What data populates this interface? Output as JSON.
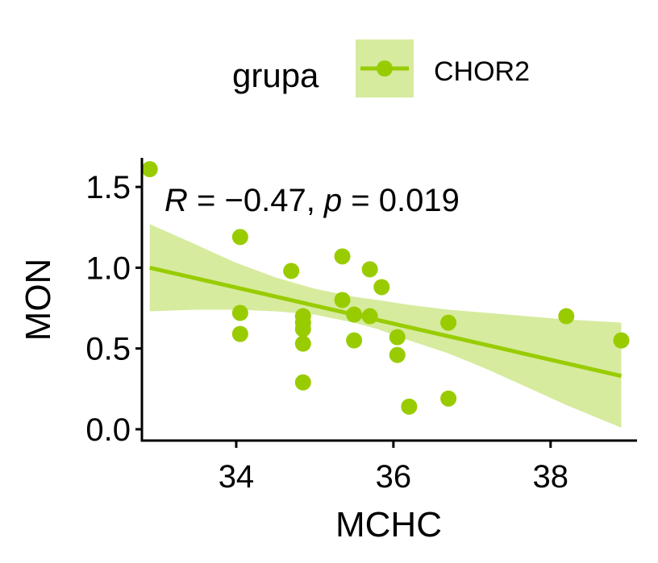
{
  "chart_data": {
    "type": "scatter",
    "xlabel": "MCHC",
    "ylabel": "MON",
    "xlim": [
      32.8,
      39.1
    ],
    "ylim": [
      -0.07,
      1.68
    ],
    "x_ticks": [
      34,
      36,
      38
    ],
    "y_ticks": [
      0.0,
      0.5,
      1.0,
      1.5
    ],
    "x_tick_labels": [
      "34",
      "36",
      "38"
    ],
    "y_tick_labels": [
      "0.0",
      "0.5",
      "1.0",
      "1.5"
    ],
    "grid": false,
    "legend": {
      "title": "grupa",
      "position": "top",
      "entries": [
        "CHOR2"
      ]
    },
    "annotation": {
      "r_symbol": "R",
      "r_text": " = −0.47, ",
      "p_symbol": "p",
      "p_text": " = 0.019"
    },
    "colors": {
      "points": "#99CC00",
      "line": "#99CC00",
      "band": "#D6EB9E"
    },
    "series": [
      {
        "name": "CHOR2",
        "points": [
          {
            "x": 32.9,
            "y": 1.61
          },
          {
            "x": 34.05,
            "y": 1.19
          },
          {
            "x": 34.05,
            "y": 0.72
          },
          {
            "x": 34.05,
            "y": 0.59
          },
          {
            "x": 34.7,
            "y": 0.98
          },
          {
            "x": 34.85,
            "y": 0.7
          },
          {
            "x": 34.85,
            "y": 0.66
          },
          {
            "x": 34.85,
            "y": 0.62
          },
          {
            "x": 34.85,
            "y": 0.53
          },
          {
            "x": 34.85,
            "y": 0.29
          },
          {
            "x": 35.35,
            "y": 1.07
          },
          {
            "x": 35.35,
            "y": 0.8
          },
          {
            "x": 35.5,
            "y": 0.71
          },
          {
            "x": 35.5,
            "y": 0.55
          },
          {
            "x": 35.7,
            "y": 0.99
          },
          {
            "x": 35.7,
            "y": 0.7
          },
          {
            "x": 35.85,
            "y": 0.88
          },
          {
            "x": 36.05,
            "y": 0.57
          },
          {
            "x": 36.05,
            "y": 0.46
          },
          {
            "x": 36.2,
            "y": 0.14
          },
          {
            "x": 36.7,
            "y": 0.66
          },
          {
            "x": 36.7,
            "y": 0.19
          },
          {
            "x": 38.2,
            "y": 0.7
          },
          {
            "x": 38.9,
            "y": 0.55
          }
        ],
        "fit": {
          "x": [
            32.9,
            38.9
          ],
          "y": [
            1.0,
            0.33
          ]
        },
        "ci_band": {
          "x": [
            32.9,
            33.5,
            34.0,
            34.5,
            35.0,
            35.5,
            35.8,
            36.2,
            36.7,
            37.2,
            37.7,
            38.2,
            38.9
          ],
          "upper": [
            1.27,
            1.14,
            1.03,
            0.94,
            0.87,
            0.82,
            0.8,
            0.77,
            0.74,
            0.72,
            0.7,
            0.68,
            0.66
          ],
          "lower": [
            0.73,
            0.74,
            0.74,
            0.73,
            0.71,
            0.66,
            0.62,
            0.55,
            0.47,
            0.37,
            0.26,
            0.15,
            0.01
          ]
        }
      }
    ]
  }
}
